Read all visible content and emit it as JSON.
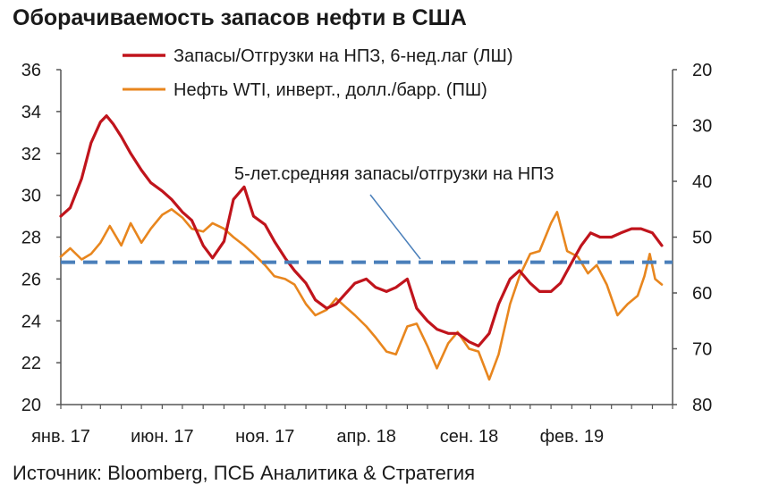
{
  "title": "Оборачиваемость запасов нефти в США",
  "source": "Источник: Bloomberg, ПСБ Аналитика & Стратегия",
  "chart_data": {
    "type": "line",
    "title": "Оборачиваемость запасов нефти в США",
    "x_tick_labels": [
      "янв. 17",
      "июн. 17",
      "ноя. 17",
      "апр. 18",
      "сен. 18",
      "фев. 19"
    ],
    "x_range_months": [
      "2017-01",
      "2019-06"
    ],
    "y_left": {
      "ticks": [
        20,
        22,
        24,
        26,
        28,
        30,
        32,
        34,
        36
      ],
      "range": [
        20,
        36
      ]
    },
    "y_right": {
      "ticks": [
        20,
        30,
        40,
        50,
        60,
        70,
        80
      ],
      "range": [
        20,
        80
      ],
      "inverted": true
    },
    "grid": false,
    "legend_position": "top",
    "series": [
      {
        "name": "Запасы/Отгрузки на НПЗ, 6-нед.лаг (ЛШ)",
        "axis": "left",
        "color": "#c0141c",
        "points": [
          [
            "2017-01-01",
            29.0
          ],
          [
            "2017-01-15",
            29.4
          ],
          [
            "2017-02-01",
            30.8
          ],
          [
            "2017-02-15",
            32.5
          ],
          [
            "2017-03-01",
            33.5
          ],
          [
            "2017-03-10",
            33.8
          ],
          [
            "2017-03-20",
            33.4
          ],
          [
            "2017-04-01",
            32.8
          ],
          [
            "2017-04-15",
            32.0
          ],
          [
            "2017-05-01",
            31.2
          ],
          [
            "2017-05-15",
            30.6
          ],
          [
            "2017-06-01",
            30.2
          ],
          [
            "2017-06-15",
            29.8
          ],
          [
            "2017-07-01",
            29.2
          ],
          [
            "2017-07-15",
            28.8
          ],
          [
            "2017-08-01",
            27.6
          ],
          [
            "2017-08-15",
            27.0
          ],
          [
            "2017-09-01",
            27.8
          ],
          [
            "2017-09-15",
            29.8
          ],
          [
            "2017-10-01",
            30.4
          ],
          [
            "2017-10-15",
            29.0
          ],
          [
            "2017-11-01",
            28.6
          ],
          [
            "2017-11-15",
            27.8
          ],
          [
            "2017-12-01",
            27.0
          ],
          [
            "2017-12-15",
            26.4
          ],
          [
            "2018-01-01",
            25.8
          ],
          [
            "2018-01-15",
            25.0
          ],
          [
            "2018-02-01",
            24.6
          ],
          [
            "2018-02-15",
            24.8
          ],
          [
            "2018-03-01",
            25.3
          ],
          [
            "2018-03-15",
            25.8
          ],
          [
            "2018-04-01",
            26.0
          ],
          [
            "2018-04-15",
            25.6
          ],
          [
            "2018-05-01",
            25.4
          ],
          [
            "2018-05-15",
            25.6
          ],
          [
            "2018-06-01",
            26.0
          ],
          [
            "2018-06-15",
            24.6
          ],
          [
            "2018-07-01",
            24.0
          ],
          [
            "2018-07-15",
            23.6
          ],
          [
            "2018-08-01",
            23.4
          ],
          [
            "2018-08-15",
            23.4
          ],
          [
            "2018-09-01",
            23.0
          ],
          [
            "2018-09-15",
            22.8
          ],
          [
            "2018-10-01",
            23.4
          ],
          [
            "2018-10-15",
            24.8
          ],
          [
            "2018-11-01",
            26.0
          ],
          [
            "2018-11-15",
            26.4
          ],
          [
            "2018-12-01",
            25.8
          ],
          [
            "2018-12-15",
            25.4
          ],
          [
            "2019-01-01",
            25.4
          ],
          [
            "2019-01-15",
            25.8
          ],
          [
            "2019-02-01",
            26.8
          ],
          [
            "2019-02-15",
            27.6
          ],
          [
            "2019-03-01",
            28.2
          ],
          [
            "2019-03-15",
            28.0
          ],
          [
            "2019-04-01",
            28.0
          ],
          [
            "2019-04-15",
            28.2
          ],
          [
            "2019-05-01",
            28.4
          ],
          [
            "2019-05-15",
            28.4
          ],
          [
            "2019-06-01",
            28.2
          ],
          [
            "2019-06-15",
            27.6
          ]
        ]
      },
      {
        "name": "Нефть WTI, инверт., долл./барр. (ПШ)",
        "axis": "right",
        "color": "#e8861e",
        "points": [
          [
            "2017-01-01",
            53.5
          ],
          [
            "2017-01-15",
            52.0
          ],
          [
            "2017-02-01",
            54.0
          ],
          [
            "2017-02-15",
            53.0
          ],
          [
            "2017-03-01",
            51.0
          ],
          [
            "2017-03-15",
            48.0
          ],
          [
            "2017-04-01",
            51.5
          ],
          [
            "2017-04-15",
            47.5
          ],
          [
            "2017-05-01",
            51.0
          ],
          [
            "2017-05-15",
            48.5
          ],
          [
            "2017-06-01",
            46.0
          ],
          [
            "2017-06-15",
            45.0
          ],
          [
            "2017-07-01",
            46.5
          ],
          [
            "2017-07-15",
            48.5
          ],
          [
            "2017-08-01",
            49.0
          ],
          [
            "2017-08-15",
            47.5
          ],
          [
            "2017-09-01",
            48.5
          ],
          [
            "2017-09-15",
            50.0
          ],
          [
            "2017-10-01",
            51.5
          ],
          [
            "2017-10-15",
            53.0
          ],
          [
            "2017-11-01",
            55.0
          ],
          [
            "2017-11-15",
            57.0
          ],
          [
            "2017-12-01",
            57.5
          ],
          [
            "2017-12-15",
            58.5
          ],
          [
            "2018-01-01",
            62.0
          ],
          [
            "2018-01-15",
            64.0
          ],
          [
            "2018-02-01",
            63.0
          ],
          [
            "2018-02-15",
            61.0
          ],
          [
            "2018-03-01",
            62.5
          ],
          [
            "2018-03-15",
            64.0
          ],
          [
            "2018-04-01",
            66.0
          ],
          [
            "2018-04-15",
            68.0
          ],
          [
            "2018-05-01",
            70.5
          ],
          [
            "2018-05-15",
            71.0
          ],
          [
            "2018-06-01",
            66.0
          ],
          [
            "2018-06-15",
            65.5
          ],
          [
            "2018-07-01",
            69.5
          ],
          [
            "2018-07-15",
            73.5
          ],
          [
            "2018-08-01",
            69.0
          ],
          [
            "2018-08-15",
            67.0
          ],
          [
            "2018-09-01",
            70.0
          ],
          [
            "2018-09-15",
            70.5
          ],
          [
            "2018-10-01",
            75.5
          ],
          [
            "2018-10-15",
            71.0
          ],
          [
            "2018-11-01",
            62.0
          ],
          [
            "2018-11-15",
            57.0
          ],
          [
            "2018-12-01",
            53.0
          ],
          [
            "2018-12-15",
            52.5
          ],
          [
            "2019-01-01",
            47.5
          ],
          [
            "2019-01-10",
            45.5
          ],
          [
            "2019-01-25",
            52.5
          ],
          [
            "2019-02-10",
            53.5
          ],
          [
            "2019-02-25",
            56.5
          ],
          [
            "2019-03-10",
            55.0
          ],
          [
            "2019-03-25",
            58.5
          ],
          [
            "2019-04-10",
            64.0
          ],
          [
            "2019-04-25",
            62.0
          ],
          [
            "2019-05-10",
            60.5
          ],
          [
            "2019-05-20",
            57.0
          ],
          [
            "2019-05-28",
            53.0
          ],
          [
            "2019-06-05",
            57.5
          ],
          [
            "2019-06-15",
            58.5
          ]
        ]
      },
      {
        "name": "5-лет.средняя запасы/отгрузки на НПЗ",
        "axis": "left",
        "color": "#4a7fba",
        "style": "dashed",
        "values": [
          26.8
        ]
      }
    ],
    "annotation": "5-лет.средняя запасы/отгрузки на НПЗ"
  }
}
